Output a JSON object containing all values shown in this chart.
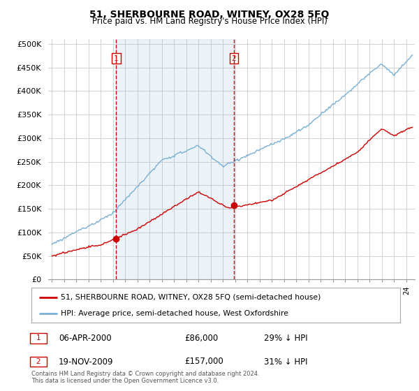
{
  "title": "51, SHERBOURNE ROAD, WITNEY, OX28 5FQ",
  "subtitle": "Price paid vs. HM Land Registry's House Price Index (HPI)",
  "ylabel_ticks": [
    "£0",
    "£50K",
    "£100K",
    "£150K",
    "£200K",
    "£250K",
    "£300K",
    "£350K",
    "£400K",
    "£450K",
    "£500K"
  ],
  "ytick_values": [
    0,
    50000,
    100000,
    150000,
    200000,
    250000,
    300000,
    350000,
    400000,
    450000,
    500000
  ],
  "ylim": [
    0,
    510000
  ],
  "xlim_start": 1994.7,
  "xlim_end": 2024.7,
  "transaction1": {
    "date_num": 2000.27,
    "price": 86000,
    "label": "1",
    "date_str": "06-APR-2000",
    "price_str": "£86,000",
    "pct": "29%"
  },
  "transaction2": {
    "date_num": 2009.89,
    "price": 157000,
    "label": "2",
    "date_str": "19-NOV-2009",
    "price_str": "£157,000",
    "pct": "31%"
  },
  "property_line_color": "#cc0000",
  "hpi_line_color": "#7ab0d4",
  "vline_color": "#cc0000",
  "shade_color": "#ddeeff",
  "grid_color": "#cccccc",
  "background_color": "#ffffff",
  "footnote": "Contains HM Land Registry data © Crown copyright and database right 2024.\nThis data is licensed under the Open Government Licence v3.0.",
  "legend_label1": "51, SHERBOURNE ROAD, WITNEY, OX28 5FQ (semi-detached house)",
  "legend_label2": "HPI: Average price, semi-detached house, West Oxfordshire"
}
